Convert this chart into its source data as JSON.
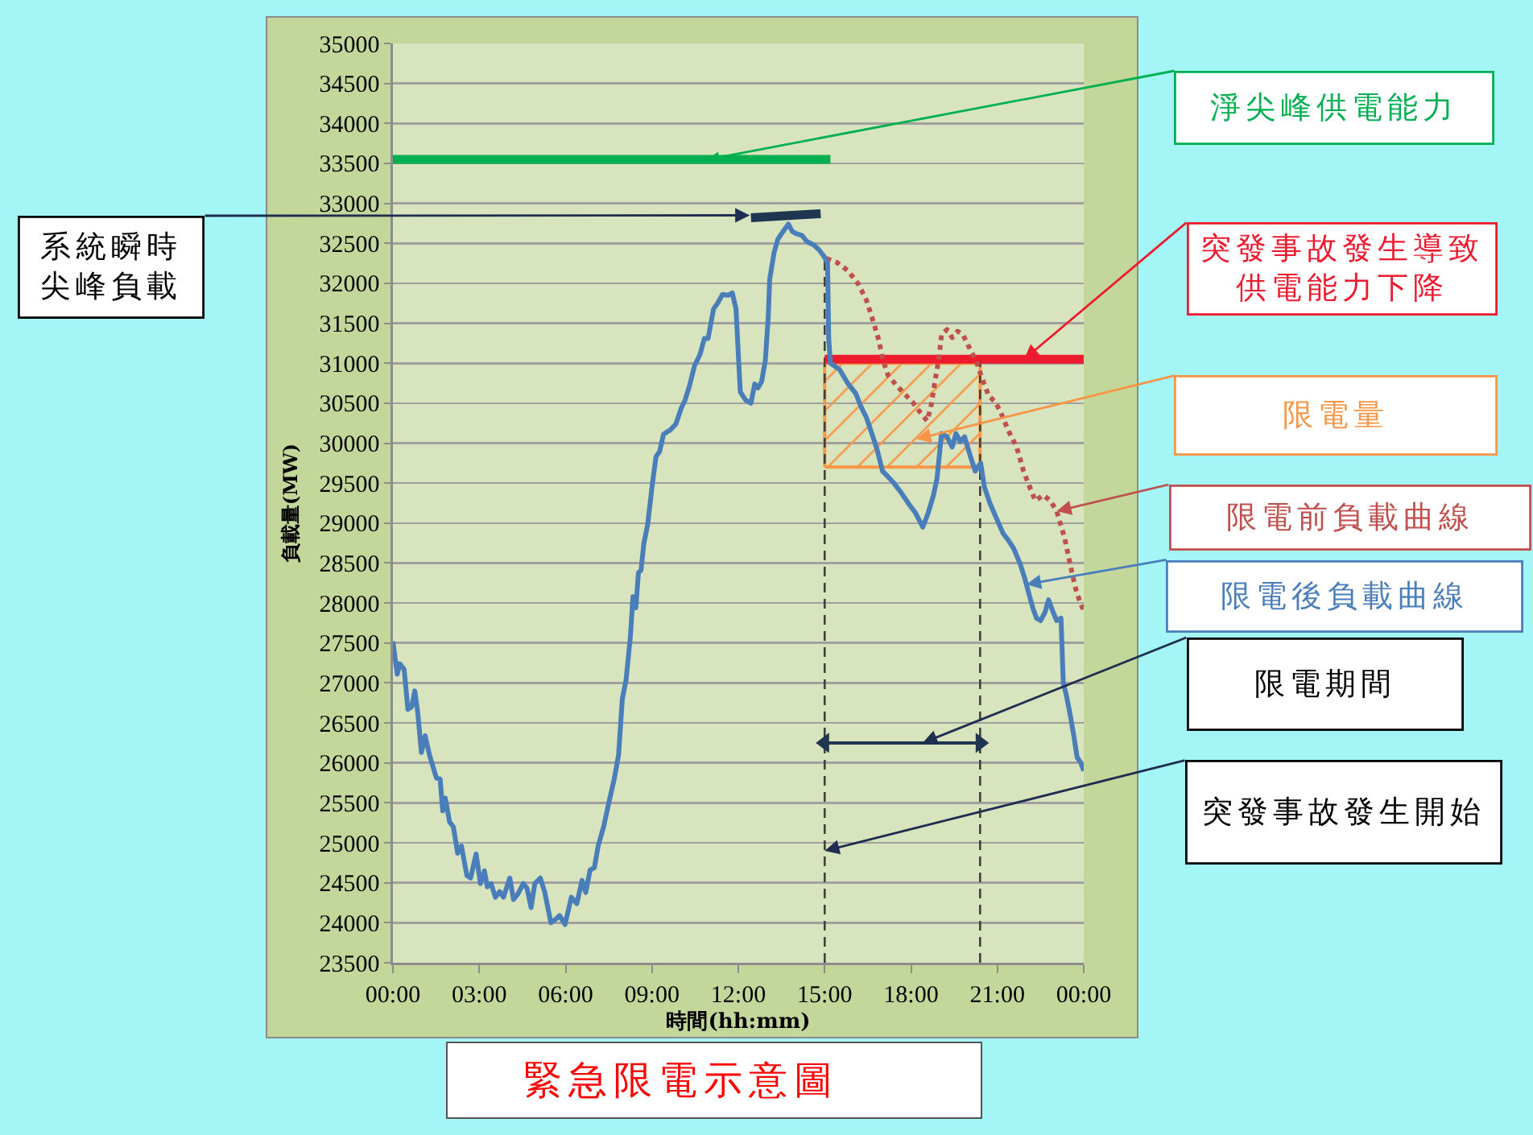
{
  "chart_data": {
    "type": "line",
    "title": "緊急限電示意圖",
    "xlabel": "時間(hh:mm)",
    "ylabel": "負載量(MW)",
    "xlim": [
      0,
      24
    ],
    "xticks": [
      {
        "value": 0,
        "label": "00:00"
      },
      {
        "value": 3,
        "label": "03:00"
      },
      {
        "value": 6,
        "label": "06:00"
      },
      {
        "value": 9,
        "label": "09:00"
      },
      {
        "value": 12,
        "label": "12:00"
      },
      {
        "value": 15,
        "label": "15:00"
      },
      {
        "value": 18,
        "label": "18:00"
      },
      {
        "value": 21,
        "label": "21:00"
      },
      {
        "value": 24,
        "label": "00:00"
      }
    ],
    "ylim": [
      23500,
      35000
    ],
    "yticks": [
      23500,
      24000,
      24500,
      25000,
      25500,
      26000,
      26500,
      27000,
      27500,
      28000,
      28500,
      29000,
      29500,
      30000,
      30500,
      31000,
      31500,
      32000,
      32500,
      33000,
      33500,
      34000,
      34500,
      35000
    ],
    "grid": "y",
    "series": [
      {
        "type": "area",
        "name": "限電量",
        "color": "#f79646",
        "x": [
          15,
          15,
          20.4,
          20.4,
          15
        ],
        "values": [
          29700,
          31000,
          31000,
          29700,
          29700
        ]
      },
      {
        "color": "#404040",
        "line_style": "dashed",
        "x": [
          15,
          15
        ],
        "values": [
          23500,
          32300
        ]
      },
      {
        "color": "#404040",
        "line_style": "dashed",
        "x": [
          20.4,
          20.4
        ],
        "values": [
          23500,
          31050
        ]
      },
      {
        "name": "淨尖峰供電能力",
        "color": "#00b050",
        "x": [
          0,
          15.2
        ],
        "values": [
          33550,
          33550
        ]
      },
      {
        "name": "突發事故發生導致供電能力下降",
        "color": "#ee1b2f",
        "x": [
          15,
          24
        ],
        "values": [
          31050,
          31050
        ]
      },
      {
        "color": "#1f3550",
        "x": [
          12.44,
          14.86
        ],
        "values": [
          32820,
          32870
        ]
      },
      {
        "name": "限電前負載曲線",
        "color": "#c0504d",
        "line_style": "dotted",
        "x": [
          15.06,
          15.43,
          15.8,
          16.17,
          16.45,
          16.69,
          16.88,
          17.01,
          17.2,
          17.48,
          17.76,
          18.04,
          18.31,
          18.56,
          18.69,
          18.84,
          18.97,
          19.06,
          19.25,
          19.43,
          19.62,
          19.8,
          19.99,
          20.27,
          20.49,
          20.7,
          20.92,
          21.11,
          21.39,
          21.67,
          21.91,
          22.09,
          22.32,
          22.6,
          22.84,
          23.06,
          23.34,
          23.53,
          23.72,
          23.9,
          24
        ],
        "values": [
          32310,
          32260,
          32160,
          31990,
          31790,
          31520,
          31290,
          31060,
          30850,
          30730,
          30620,
          30520,
          30390,
          30280,
          30450,
          30790,
          31060,
          31360,
          31420,
          31320,
          31400,
          31360,
          31220,
          31020,
          30790,
          30590,
          30520,
          30390,
          30150,
          29950,
          29650,
          29480,
          29280,
          29350,
          29280,
          29150,
          28810,
          28480,
          28180,
          27980,
          27910
        ]
      },
      {
        "name": "限電後負載曲線",
        "color": "#4a7ebb",
        "x": [
          0,
          0.15,
          0.24,
          0.39,
          0.52,
          0.65,
          0.76,
          0.86,
          0.99,
          1.12,
          1.27,
          1.51,
          1.64,
          1.73,
          1.82,
          1.97,
          2.1,
          2.25,
          2.38,
          2.57,
          2.7,
          2.89,
          3.04,
          3.18,
          3.28,
          3.41,
          3.56,
          3.71,
          3.84,
          4.06,
          4.19,
          4.34,
          4.53,
          4.66,
          4.8,
          4.93,
          5.12,
          5.27,
          5.49,
          5.64,
          5.79,
          5.98,
          6.2,
          6.39,
          6.57,
          6.7,
          6.85,
          7,
          7.13,
          7.32,
          7.5,
          7.69,
          7.84,
          7.97,
          8.1,
          8.25,
          8.34,
          8.44,
          8.53,
          8.62,
          8.72,
          8.85,
          9,
          9.14,
          9.27,
          9.4,
          9.65,
          9.83,
          10.02,
          10.15,
          10.3,
          10.48,
          10.67,
          10.82,
          10.95,
          11.14,
          11.28,
          11.45,
          11.64,
          11.79,
          11.92,
          12.01,
          12.07,
          12.25,
          12.44,
          12.57,
          12.68,
          12.81,
          12.94,
          13.04,
          13.09,
          13.24,
          13.37,
          13.56,
          13.74,
          13.87,
          14.02,
          14.21,
          14.39,
          14.62,
          14.8,
          14.99,
          15.1,
          15.14,
          15.2,
          15.52,
          15.8,
          16.08,
          16.27,
          16.45,
          16.64,
          16.82,
          17.01,
          17.2,
          17.38,
          17.66,
          17.94,
          18.15,
          18.41,
          18.59,
          18.78,
          18.9,
          19.06,
          19.25,
          19.43,
          19.56,
          19.71,
          19.86,
          20.05,
          20.23,
          20.42,
          20.55,
          20.74,
          20.98,
          21.2,
          21.39,
          21.57,
          21.8,
          21.95,
          22.1,
          22.23,
          22.36,
          22.5,
          22.65,
          22.78,
          22.91,
          23.06,
          23.21,
          23.29,
          23.4,
          23.53,
          23.66,
          23.77,
          23.9,
          24
        ],
        "values": [
          27520,
          27110,
          27240,
          27170,
          26670,
          26700,
          26900,
          26640,
          26130,
          26340,
          26100,
          25810,
          25800,
          25400,
          25560,
          25260,
          25200,
          24870,
          24960,
          24590,
          24560,
          24860,
          24490,
          24650,
          24450,
          24490,
          24320,
          24390,
          24320,
          24560,
          24290,
          24360,
          24490,
          24430,
          24190,
          24490,
          24560,
          24390,
          24000,
          24040,
          24090,
          23980,
          24320,
          24240,
          24530,
          24380,
          24660,
          24690,
          24960,
          25200,
          25500,
          25800,
          26100,
          26800,
          27040,
          27580,
          28080,
          27940,
          28380,
          28410,
          28750,
          28980,
          29450,
          29830,
          29900,
          30110,
          30170,
          30240,
          30440,
          30540,
          30710,
          30970,
          31110,
          31310,
          31310,
          31680,
          31750,
          31860,
          31850,
          31880,
          31680,
          31040,
          30640,
          30540,
          30500,
          30740,
          30690,
          30770,
          31040,
          31580,
          32050,
          32380,
          32550,
          32650,
          32740,
          32650,
          32620,
          32600,
          32520,
          32480,
          32420,
          32330,
          32250,
          31310,
          31000,
          30920,
          30750,
          30620,
          30450,
          30320,
          30120,
          29920,
          29650,
          29580,
          29510,
          29380,
          29230,
          29130,
          28950,
          29120,
          29350,
          29550,
          30120,
          30080,
          29950,
          30120,
          30020,
          30080,
          29850,
          29650,
          29750,
          29450,
          29250,
          29050,
          28870,
          28780,
          28680,
          28480,
          28310,
          28110,
          27940,
          27810,
          27780,
          27880,
          28040,
          27910,
          27780,
          27810,
          27000,
          26840,
          26600,
          26330,
          26070,
          26000,
          25900
        ]
      },
      {
        "color": "#1f3550",
        "marker": "triangle",
        "x": [
          15,
          20.4
        ],
        "values": [
          26250,
          26250
        ]
      }
    ],
    "annotations": [
      {
        "text": "系統瞬時尖峰負載",
        "x": 12.4,
        "y": 32850
      },
      "限電期間",
      {
        "text": "突發事故發生開始",
        "x": 15,
        "y": 24900
      }
    ]
  }
}
